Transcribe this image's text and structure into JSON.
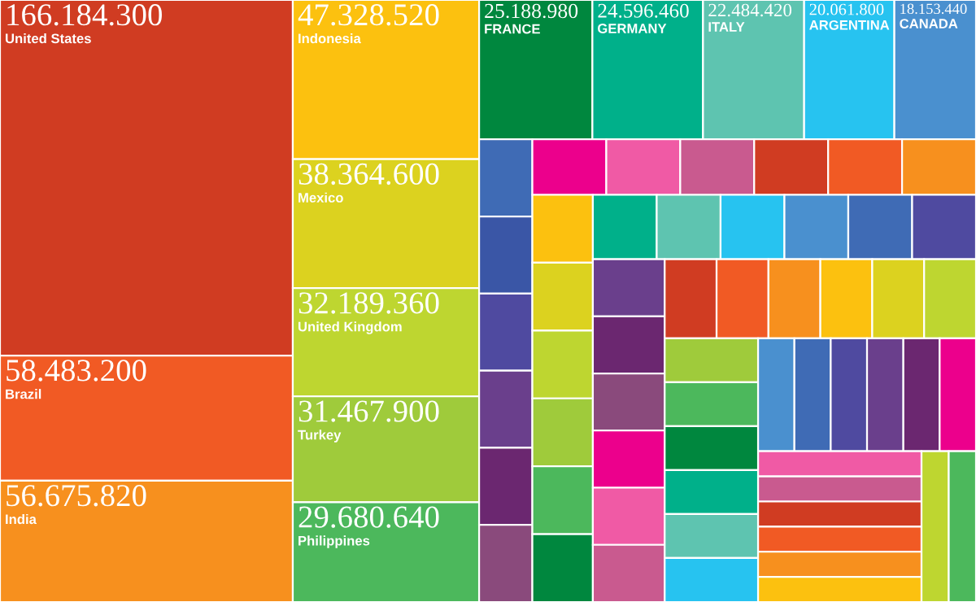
{
  "chart_data": {
    "type": "other",
    "categories": [
      "United States",
      "Brazil",
      "India",
      "Indonesia",
      "Mexico",
      "United Kingdom",
      "Turkey",
      "Philippines",
      "FRANCE",
      "GERMANY",
      "ITALY",
      "ARGENTINA",
      "CANADA",
      null,
      null,
      null,
      null,
      null,
      null,
      null,
      null,
      null,
      null,
      null,
      null,
      null,
      null,
      null,
      null,
      null,
      null,
      null,
      null,
      null,
      null,
      null,
      null,
      null,
      null,
      null,
      null,
      null,
      null,
      null,
      null,
      null,
      null,
      null,
      null,
      null,
      null,
      null,
      null,
      null,
      null,
      null,
      null,
      null,
      null,
      null,
      null,
      null,
      null,
      null,
      null,
      null,
      null,
      null,
      null
    ],
    "values": [
      166184300,
      58483200,
      56675820,
      47328520,
      38364600,
      32189360,
      31467900,
      29680640,
      25188980,
      24596460,
      22484420,
      20061800,
      18153440,
      null,
      null,
      null,
      null,
      null,
      null,
      null,
      null,
      null,
      null,
      null,
      null,
      null,
      null,
      null,
      null,
      null,
      null,
      null,
      null,
      null,
      null,
      null,
      null,
      null,
      null,
      null,
      null,
      null,
      null,
      null,
      null,
      null,
      null,
      null,
      null,
      null,
      null,
      null,
      null,
      null,
      null,
      null,
      null,
      null,
      null,
      null,
      null,
      null,
      null,
      null,
      null,
      null,
      null,
      null,
      null
    ],
    "value_labels": [
      "166.184.300",
      "58.483.200",
      "56.675.820",
      "47.328.520",
      "38.364.600",
      "32.189.360",
      "31.467.900",
      "29.680.640",
      "25.188.980",
      "24.596.460",
      "22.484.420",
      "20.061.800",
      "18.153.440",
      null,
      null,
      null,
      null,
      null,
      null,
      null,
      null,
      null,
      null,
      null,
      null,
      null,
      null,
      null,
      null,
      null,
      null,
      null,
      null,
      null,
      null,
      null,
      null,
      null,
      null,
      null,
      null,
      null,
      null,
      null,
      null,
      null,
      null,
      null,
      null,
      null,
      null,
      null,
      null,
      null,
      null,
      null,
      null,
      null,
      null,
      null,
      null,
      null,
      null,
      null,
      null,
      null,
      null,
      null,
      null
    ],
    "colors": [
      "#d03c22",
      "#f15a24",
      "#f7901e",
      "#fcc10f",
      "#dcd21f",
      "#bed630",
      "#9fcb3b",
      "#4cb85c",
      "#00873e",
      "#00b08a",
      "#5ec4b0",
      "#27c3f0",
      "#4a90cf",
      "#3f6bb5",
      "#3a56a6",
      "#4f4aa0",
      "#6a3f8c",
      "#6b2770",
      "#8a4a7c",
      "#ec008c",
      "#f05aa5",
      "#c95a8f",
      "#d03c22",
      "#f15a24",
      "#f7901e",
      "#fcc10f",
      "#dcd21f",
      "#bed630",
      "#9fcb3b",
      "#4cb85c",
      "#00873e",
      "#00b08a",
      "#5ec4b0",
      "#27c3f0",
      "#4a90cf",
      "#3f6bb5",
      "#4f4aa0",
      "#6a3f8c",
      "#6b2770",
      "#8a4a7c",
      "#ec008c",
      "#f05aa5",
      "#c95a8f",
      "#d03c22",
      "#f15a24",
      "#f7901e",
      "#fcc10f",
      "#dcd21f",
      "#bed630",
      "#9fcb3b",
      "#4cb85c",
      "#00873e",
      "#00b08a",
      "#5ec4b0",
      "#27c3f0",
      "#4a90cf",
      "#3f6bb5",
      "#4f4aa0",
      "#6a3f8c",
      "#6b2770",
      "#ec008c",
      "#f05aa5",
      "#c95a8f",
      "#d03c22",
      "#f15a24",
      "#f7901e",
      "#fcc10f",
      "#bed630",
      "#4cb85c"
    ]
  }
}
